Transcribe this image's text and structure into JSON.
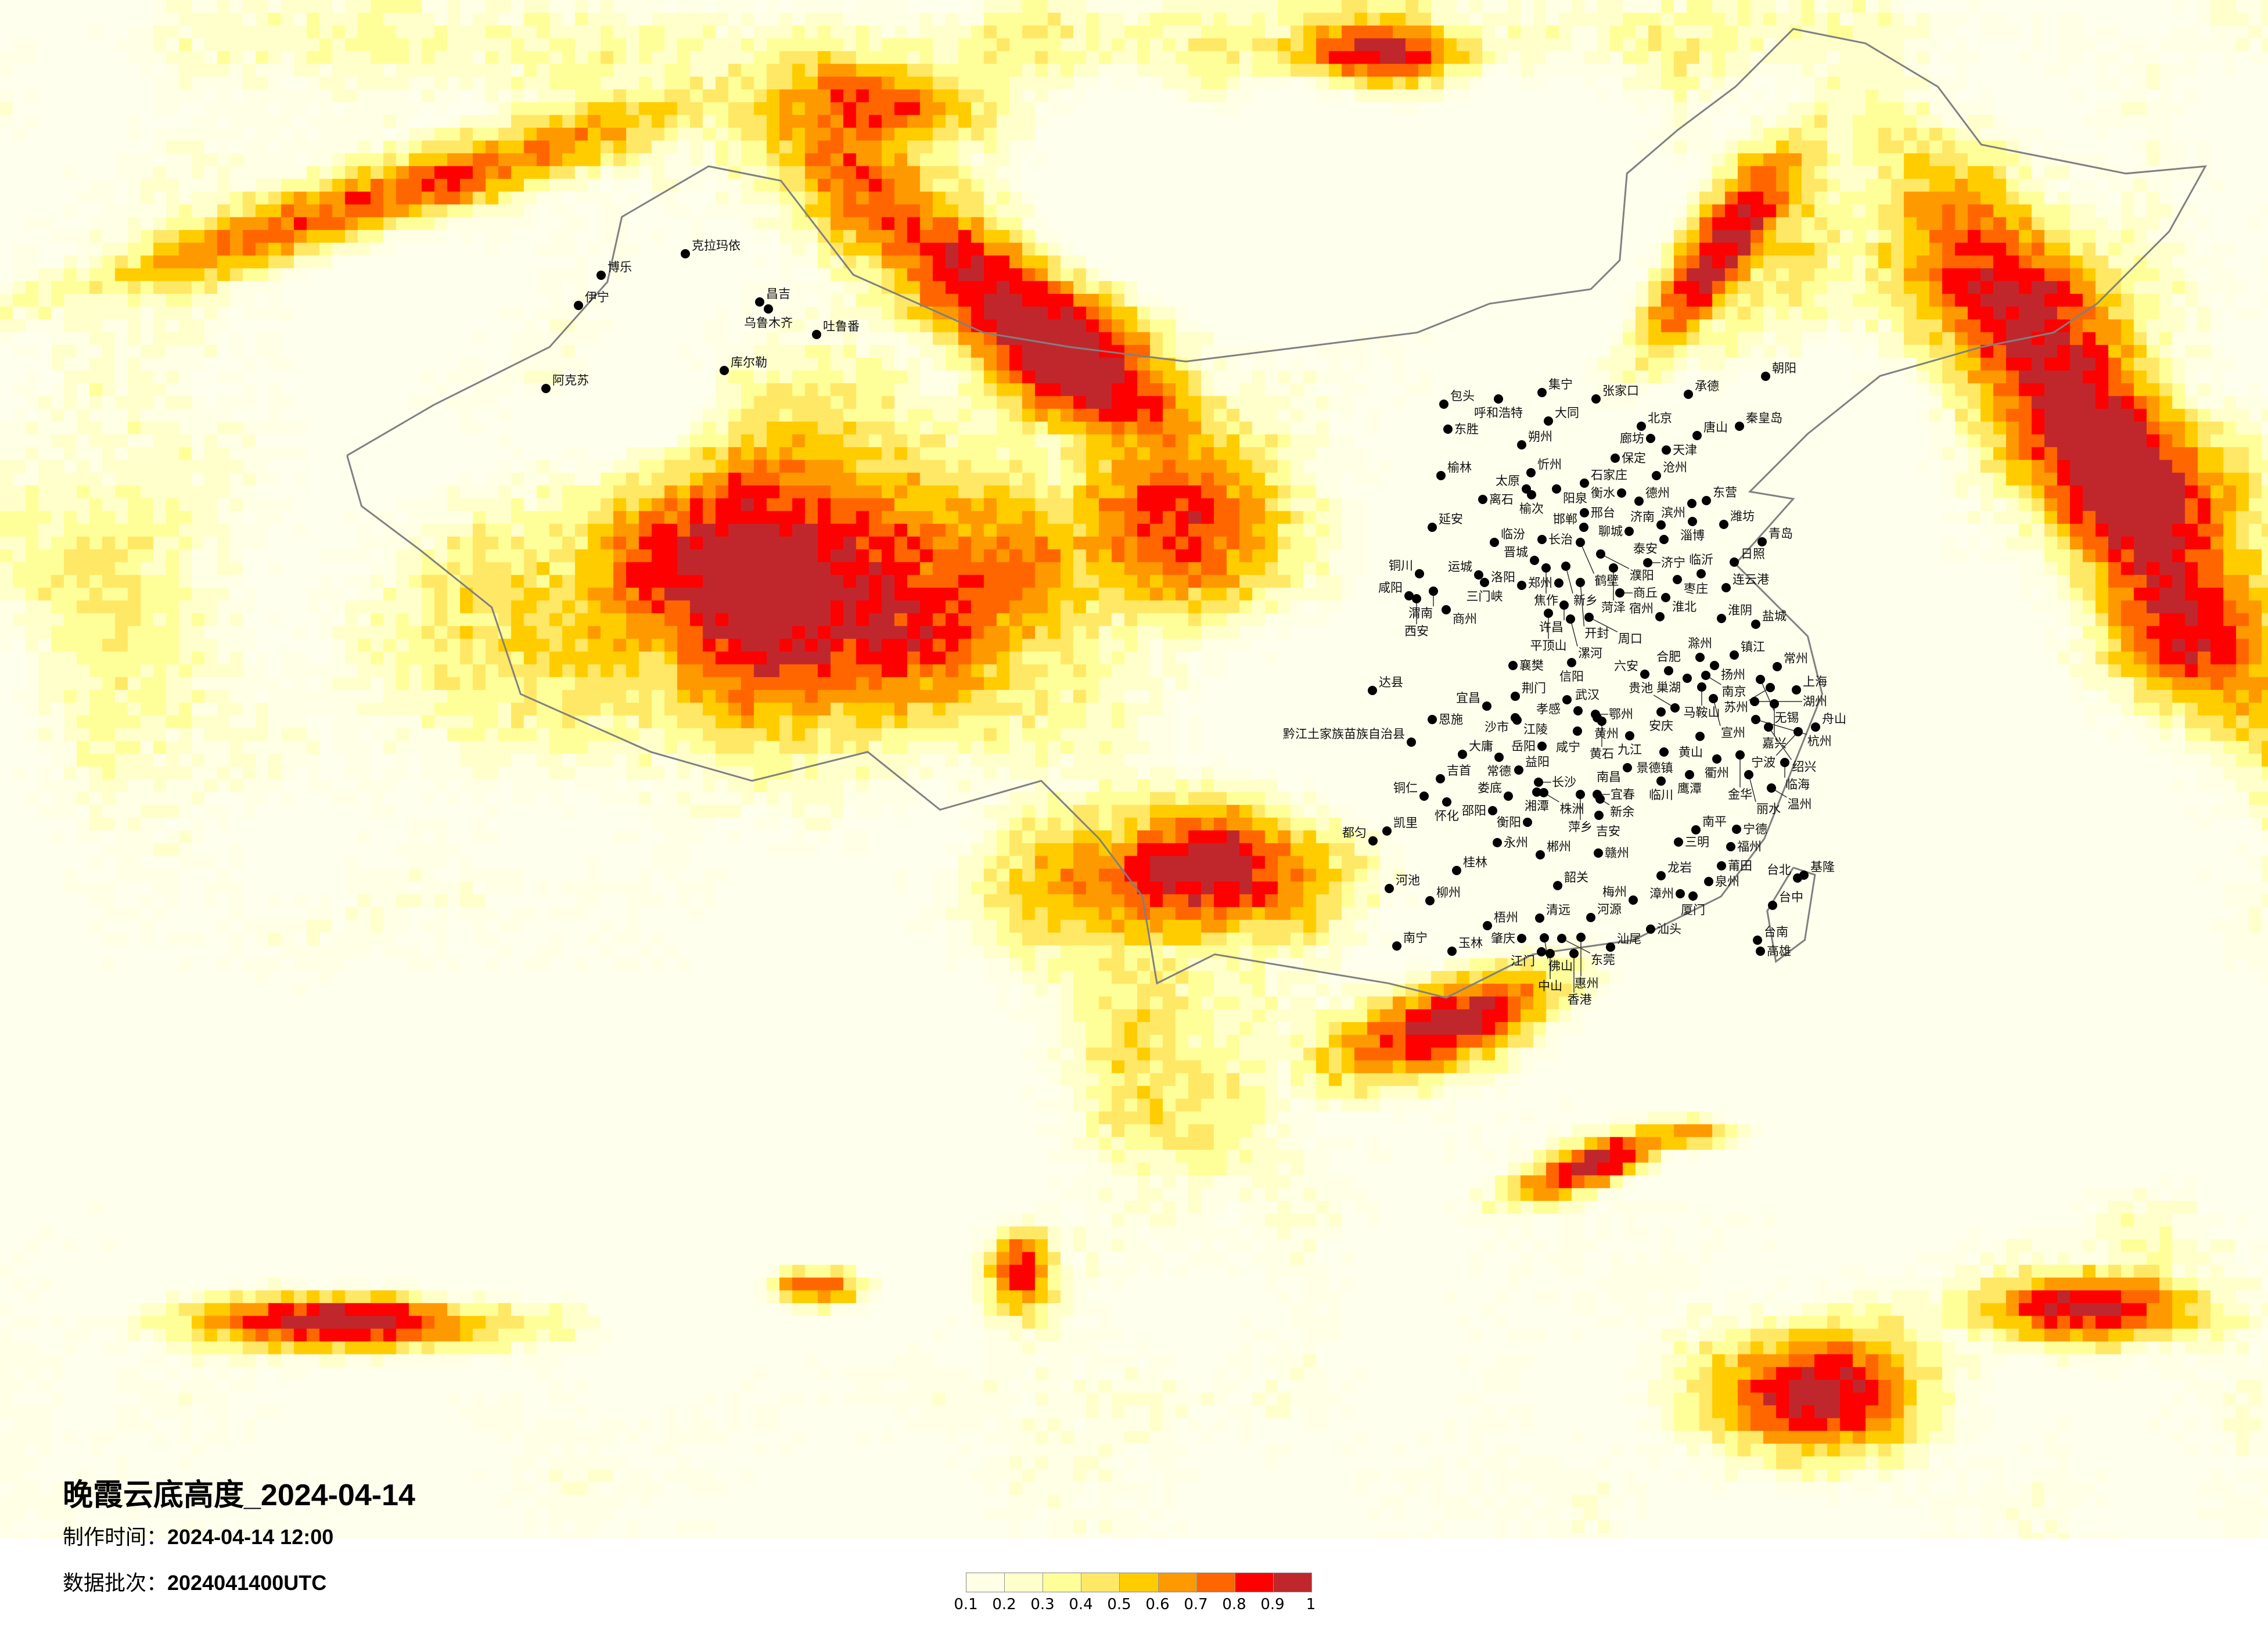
{
  "title": "晚霞云底高度_2024-04-14",
  "production_time": {
    "label": "制作时间：",
    "value": "2024-04-14 12:00"
  },
  "data_batch": {
    "label": "数据批次：",
    "value": "2024041400UTC"
  },
  "legend": {
    "ticks": [
      "0.1",
      "0.2",
      "0.3",
      "0.4",
      "0.5",
      "0.6",
      "0.7",
      "0.8",
      "0.9",
      "1"
    ],
    "colors": [
      "#FFFFE6",
      "#FFFFCC",
      "#FFFF99",
      "#FFE866",
      "#FFCC00",
      "#FF9900",
      "#FF6600",
      "#FF0000",
      "#C0272D"
    ]
  },
  "map": {
    "background_color": "#FFFFEE",
    "border_color": "#808080",
    "city_marker_color": "#000000",
    "cities": [
      "克拉玛依",
      "博乐",
      "伊宁",
      "昌吉",
      "乌鲁木齐",
      "吐鲁番",
      "库尔勒",
      "阿克苏",
      "包头",
      "呼和浩特",
      "集宁",
      "张家口",
      "承德",
      "朝阳",
      "大同",
      "东胜",
      "北京",
      "唐山",
      "秦皇岛",
      "廊坊",
      "天津",
      "朔州",
      "保定",
      "沧州",
      "榆林",
      "忻州",
      "太原",
      "榆次",
      "阳泉",
      "石家庄",
      "离石",
      "衡水",
      "德州",
      "邢台",
      "滨州",
      "东营",
      "淄博",
      "潍坊",
      "邯郸",
      "济南",
      "聊城",
      "延安",
      "临汾",
      "长治",
      "泰安",
      "青岛",
      "鹤壁",
      "濮阳",
      "晋城",
      "焦作",
      "新乡",
      "菏泽",
      "济宁",
      "日照",
      "临沂",
      "枣庄",
      "运城",
      "三门峡",
      "洛阳",
      "郑州",
      "开封",
      "连云港",
      "铜川",
      "渭南",
      "咸阳",
      "西安",
      "商州",
      "商丘",
      "淮北",
      "宿州",
      "许昌",
      "平顶山",
      "漯河",
      "周口",
      "淮阴",
      "盐城",
      "襄樊",
      "信阳",
      "六安",
      "合肥",
      "滁州",
      "扬州",
      "镇江",
      "南京",
      "常州",
      "无锡",
      "巢湖",
      "马鞍山",
      "苏州",
      "上海",
      "达县",
      "荆门",
      "孝感",
      "宜昌",
      "武汉",
      "鄂州",
      "黄州",
      "黄石",
      "宣州",
      "湖州",
      "嘉兴",
      "安庆",
      "贵池",
      "恩施",
      "沙市",
      "江陵",
      "咸宁",
      "杭州",
      "绍兴",
      "宁波",
      "舟山",
      "九江",
      "黄山",
      "黔江土家族苗族自治县",
      "岳阳",
      "大庸",
      "常德",
      "景德镇",
      "衢州",
      "金华",
      "临海",
      "益阳",
      "南昌",
      "丽水",
      "吉首",
      "长沙",
      "鹰潭",
      "临川",
      "温州",
      "湘潭",
      "株洲",
      "萍乡",
      "宜春",
      "娄底",
      "铜仁",
      "怀化",
      "新余",
      "邵阳",
      "吉安",
      "衡阳",
      "凯里",
      "宁德",
      "南平",
      "都匀",
      "三明",
      "永州",
      "福州",
      "赣州",
      "郴州",
      "莆田",
      "桂林",
      "龙岩",
      "泉州",
      "台北",
      "基隆",
      "韶关",
      "河池",
      "漳州",
      "厦门",
      "梅州",
      "柳州",
      "台中",
      "清远",
      "河源",
      "梧州",
      "汕头",
      "肇庆",
      "佛山",
      "东莞",
      "惠州",
      "汕尾",
      "南宁",
      "玉林",
      "台南",
      "高雄",
      "江门",
      "中山",
      "香港"
    ]
  }
}
